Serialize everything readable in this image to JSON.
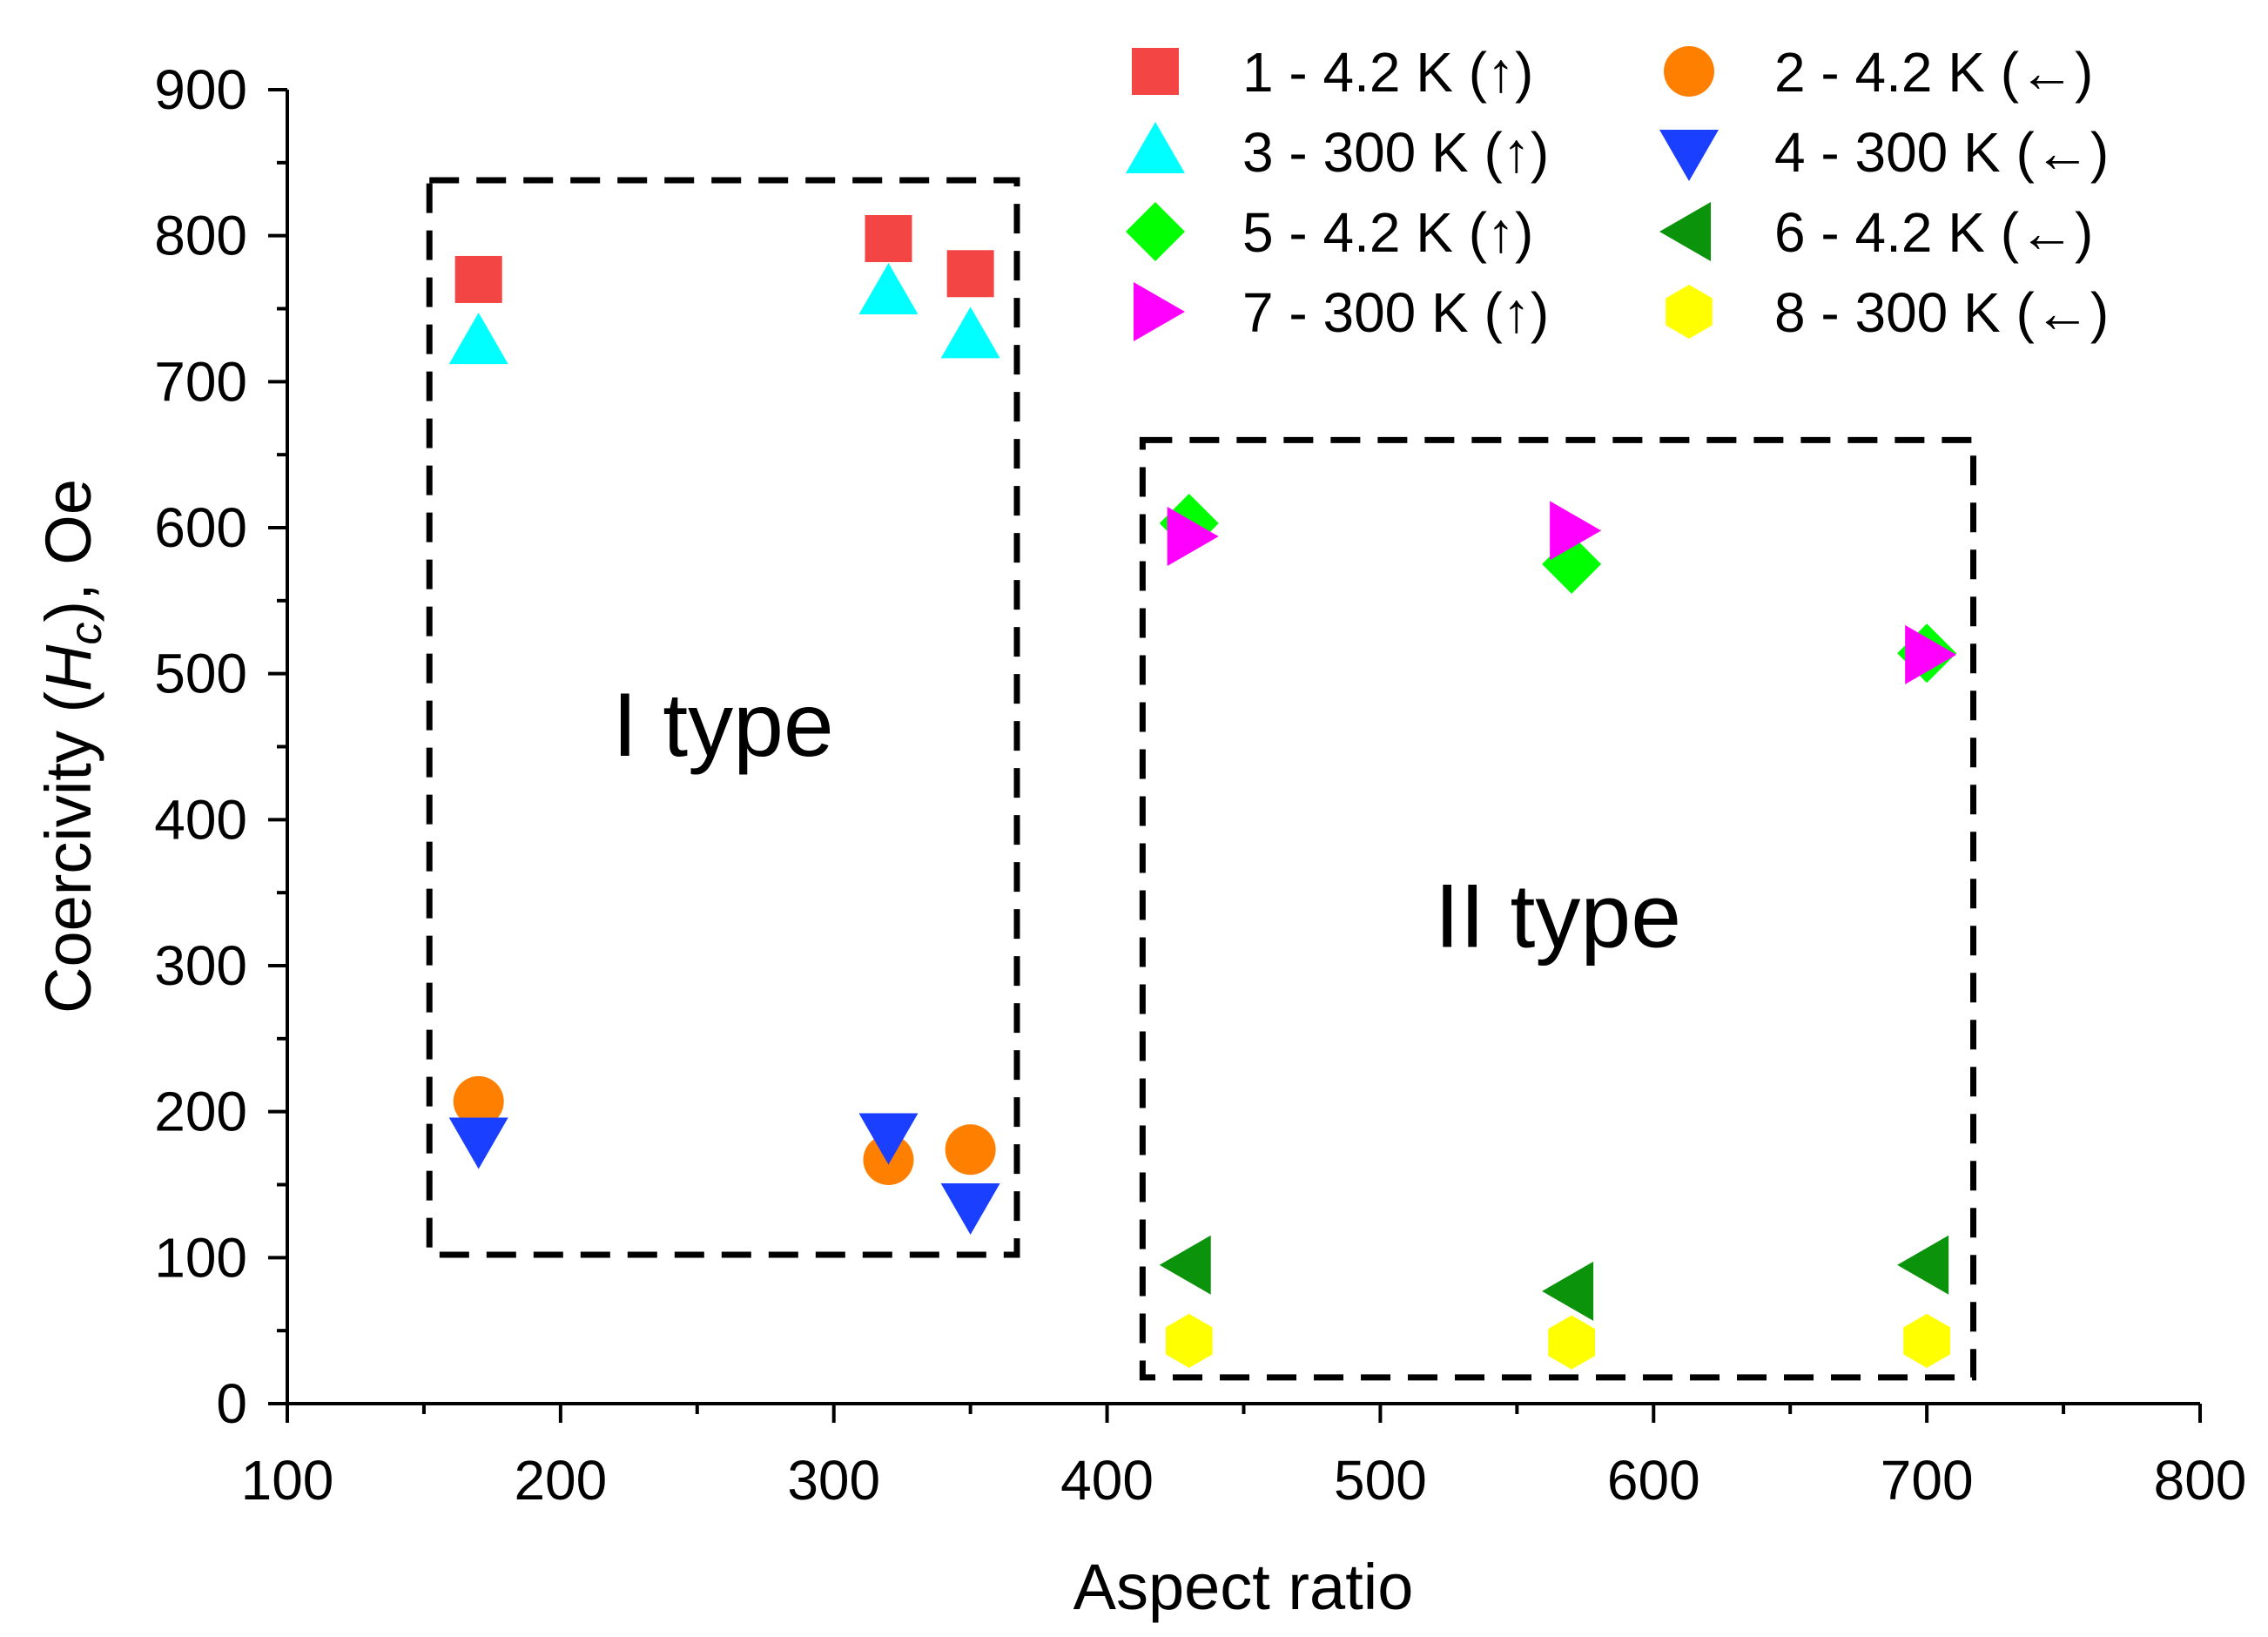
{
  "chart_data": {
    "type": "scatter",
    "title": "",
    "xlabel": "Aspect ratio",
    "ylabel": {
      "prefix": "Coercivity (",
      "symbol": "H",
      "subscript": "c",
      "suffix": "), Oe"
    },
    "xlim": [
      100,
      800
    ],
    "ylim": [
      0,
      900
    ],
    "x_ticks": [
      100,
      200,
      300,
      400,
      500,
      600,
      700,
      800
    ],
    "y_ticks": [
      0,
      100,
      200,
      300,
      400,
      500,
      600,
      700,
      800,
      900
    ],
    "grid": false,
    "legend_position": "top-right",
    "series": [
      {
        "name": "1 - 4.2 K (↑)",
        "marker": "square",
        "color": "#f44545",
        "points": [
          [
            170,
            770
          ],
          [
            320,
            798
          ],
          [
            350,
            774
          ]
        ]
      },
      {
        "name": "2 - 4.2 K (←)",
        "marker": "circle",
        "color": "#ff8000",
        "points": [
          [
            170,
            207
          ],
          [
            320,
            167
          ],
          [
            350,
            174
          ]
        ]
      },
      {
        "name": "3 - 300 K (↑)",
        "marker": "triangle-up",
        "color": "#00ffff",
        "points": [
          [
            170,
            727
          ],
          [
            320,
            761
          ],
          [
            350,
            731
          ]
        ]
      },
      {
        "name": "4 - 300 K (←)",
        "marker": "triangle-down",
        "color": "#1a3fff",
        "points": [
          [
            170,
            181
          ],
          [
            320,
            184
          ],
          [
            350,
            136
          ]
        ]
      },
      {
        "name": "5 - 4.2 K (↑)",
        "marker": "diamond",
        "color": "#00ff00",
        "points": [
          [
            430,
            603
          ],
          [
            570,
            575
          ],
          [
            700,
            514
          ]
        ]
      },
      {
        "name": "6 - 4.2 K (←)",
        "marker": "triangle-left",
        "color": "#0c930c",
        "points": [
          [
            430,
            95
          ],
          [
            570,
            77
          ],
          [
            700,
            95
          ]
        ]
      },
      {
        "name": "7 - 300 K (↑)",
        "marker": "triangle-right",
        "color": "#ff00ff",
        "points": [
          [
            430,
            594
          ],
          [
            570,
            598
          ],
          [
            700,
            513
          ]
        ]
      },
      {
        "name": "8 - 300 K (←)",
        "marker": "hexagon",
        "color": "#ffff00",
        "points": [
          [
            430,
            43
          ],
          [
            570,
            42
          ],
          [
            700,
            43
          ]
        ]
      }
    ],
    "regions": [
      {
        "label": "I type",
        "x_range": [
          152,
          367
        ],
        "y_range": [
          102,
          838
        ]
      },
      {
        "label": "II type",
        "x_range": [
          413,
          717
        ],
        "y_range": [
          18,
          660
        ]
      }
    ]
  }
}
